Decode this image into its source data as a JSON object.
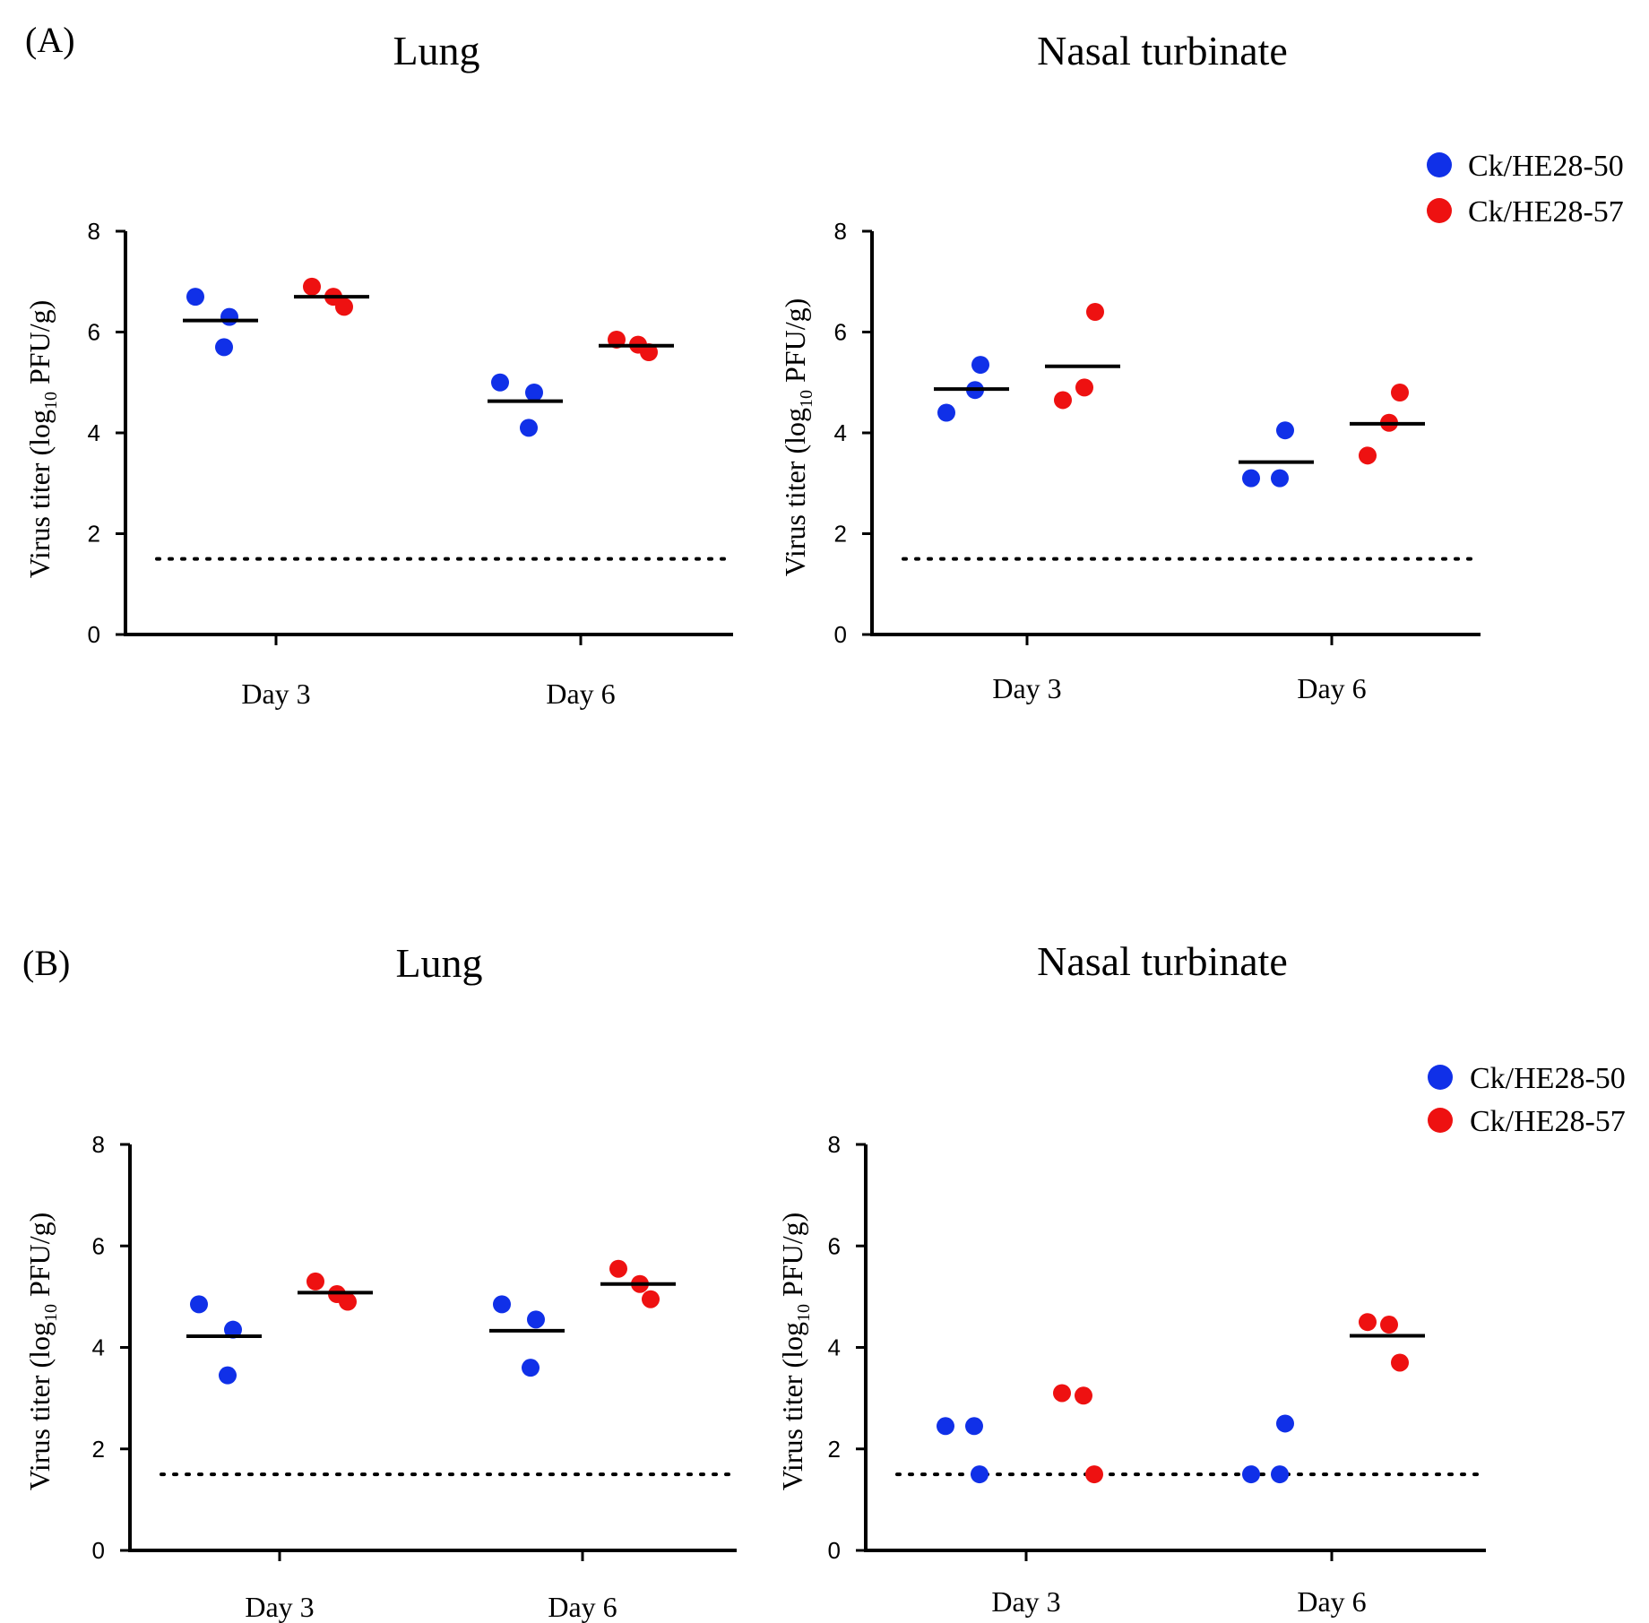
{
  "figure": {
    "panel_labels": [
      "(A)",
      "(B)"
    ],
    "legend_entries": [
      {
        "name": "Ck/HE28-50",
        "color": "#1030e8"
      },
      {
        "name": "Ck/HE28-57",
        "color": "#ee1111"
      }
    ]
  },
  "chart_data": [
    {
      "id": "A-lung",
      "panel": "(A)",
      "type": "scatter",
      "title": "Lung",
      "ylabel": "Virus titer (log10 PFU/g)",
      "ylabel_parts": [
        "Virus titer (log",
        "10",
        " PFU/g)"
      ],
      "ylim": [
        0,
        8
      ],
      "yticks": [
        "0",
        "2",
        "4",
        "6",
        "8"
      ],
      "categories": [
        "Day 3",
        "Day 6"
      ],
      "detection_limit": 1.5,
      "series": [
        {
          "name": "Ck/HE28-50",
          "color": "#1030e8",
          "points": [
            [
              6.7,
              6.3,
              5.7
            ],
            [
              5.0,
              4.8,
              4.1
            ]
          ],
          "means": [
            6.23,
            4.63
          ]
        },
        {
          "name": "Ck/HE28-57",
          "color": "#ee1111",
          "points": [
            [
              6.9,
              6.5,
              6.7
            ],
            [
              5.85,
              5.6,
              5.75
            ]
          ],
          "means": [
            6.7,
            5.73
          ]
        }
      ]
    },
    {
      "id": "A-nasal",
      "panel": "(A)",
      "type": "scatter",
      "title": "Nasal turbinate",
      "ylabel": "Virus titer (log10 PFU/g)",
      "ylabel_parts": [
        "Virus titer (log",
        "10",
        " PFU/g)"
      ],
      "ylim": [
        0,
        8
      ],
      "yticks": [
        "0",
        "2",
        "4",
        "6",
        "8"
      ],
      "categories": [
        "Day 3",
        "Day 6"
      ],
      "detection_limit": 1.5,
      "series": [
        {
          "name": "Ck/HE28-50",
          "color": "#1030e8",
          "points": [
            [
              4.4,
              5.35,
              4.85
            ],
            [
              3.1,
              4.05,
              3.1
            ]
          ],
          "means": [
            4.87,
            3.42
          ]
        },
        {
          "name": "Ck/HE28-57",
          "color": "#ee1111",
          "points": [
            [
              4.65,
              6.4,
              4.9
            ],
            [
              3.55,
              4.8,
              4.2
            ]
          ],
          "means": [
            5.32,
            4.18
          ]
        }
      ]
    },
    {
      "id": "B-lung",
      "panel": "(B)",
      "type": "scatter",
      "title": "Lung",
      "ylabel": "Virus titer (log10 PFU/g)",
      "ylabel_parts": [
        "Virus titer (log",
        "10",
        " PFU/g)"
      ],
      "ylim": [
        0,
        8
      ],
      "yticks": [
        "0",
        "2",
        "4",
        "6",
        "8"
      ],
      "categories": [
        "Day 3",
        "Day 6"
      ],
      "detection_limit": 1.5,
      "series": [
        {
          "name": "Ck/HE28-50",
          "color": "#1030e8",
          "points": [
            [
              4.85,
              4.35,
              3.45
            ],
            [
              4.85,
              4.55,
              3.6
            ]
          ],
          "means": [
            4.22,
            4.33
          ]
        },
        {
          "name": "Ck/HE28-57",
          "color": "#ee1111",
          "points": [
            [
              5.3,
              4.9,
              5.05
            ],
            [
              5.55,
              4.95,
              5.25
            ]
          ],
          "means": [
            5.08,
            5.25
          ]
        }
      ]
    },
    {
      "id": "B-nasal",
      "panel": "(B)",
      "type": "scatter",
      "title": "Nasal turbinate",
      "ylabel": "Virus titer (log10 PFU/g)",
      "ylabel_parts": [
        "Virus titer (log",
        "10",
        " PFU/g)"
      ],
      "ylim": [
        0,
        8
      ],
      "yticks": [
        "0",
        "2",
        "4",
        "6",
        "8"
      ],
      "categories": [
        "Day 3",
        "Day 6"
      ],
      "detection_limit": 1.5,
      "series": [
        {
          "name": "Ck/HE28-50",
          "color": "#1030e8",
          "points": [
            [
              2.45,
              1.5,
              2.45
            ],
            [
              1.5,
              2.5,
              1.5
            ]
          ],
          "means": [
            null,
            null
          ]
        },
        {
          "name": "Ck/HE28-57",
          "color": "#ee1111",
          "points": [
            [
              3.1,
              1.5,
              3.05
            ],
            [
              4.5,
              3.7,
              4.45
            ]
          ],
          "means": [
            null,
            4.23
          ]
        }
      ]
    }
  ]
}
